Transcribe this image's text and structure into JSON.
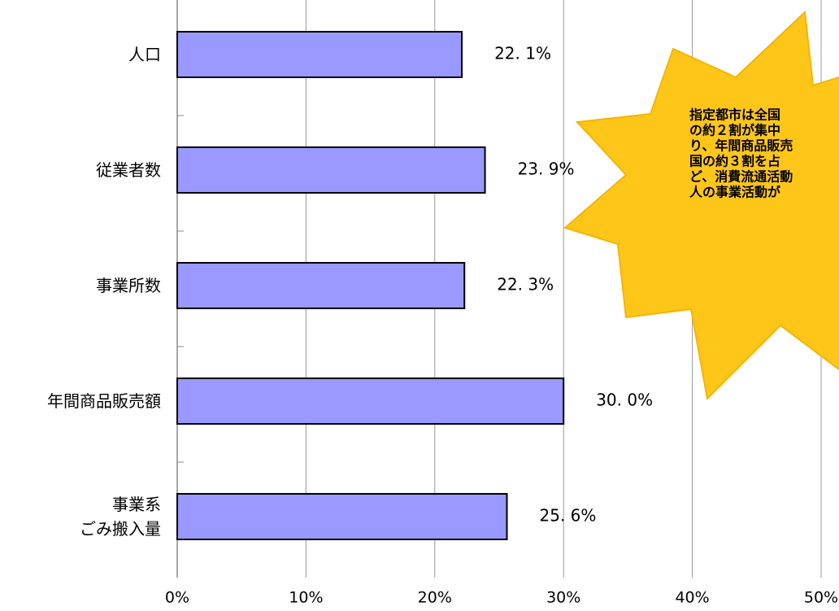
{
  "chart_data": {
    "type": "bar",
    "orientation": "horizontal",
    "categories": [
      "人口",
      "従業者数",
      "事業所数",
      "年間商品販売額",
      "事業系\nごみ搬入量"
    ],
    "values": [
      22.1,
      23.9,
      22.3,
      30.0,
      25.6
    ],
    "value_labels": [
      "22. 1%",
      "23. 9%",
      "22. 3%",
      "30. 0%",
      "25. 6%"
    ],
    "color": "#9999ff",
    "xlim": [
      0,
      50
    ],
    "xticks": [
      {
        "value": 0,
        "label": "0%"
      },
      {
        "value": 10,
        "label": "10%"
      },
      {
        "value": 20,
        "label": "20%"
      },
      {
        "value": 30,
        "label": "30%"
      },
      {
        "value": 40,
        "label": "40%"
      },
      {
        "value": 50,
        "label": "50%"
      }
    ],
    "grid": true,
    "annotation": [
      "指定都市は全国",
      "の約２割が集中",
      "り、年間商品販売",
      "国の約３割を占",
      "ど、消費流通活動",
      "人の事業活動が"
    ]
  }
}
